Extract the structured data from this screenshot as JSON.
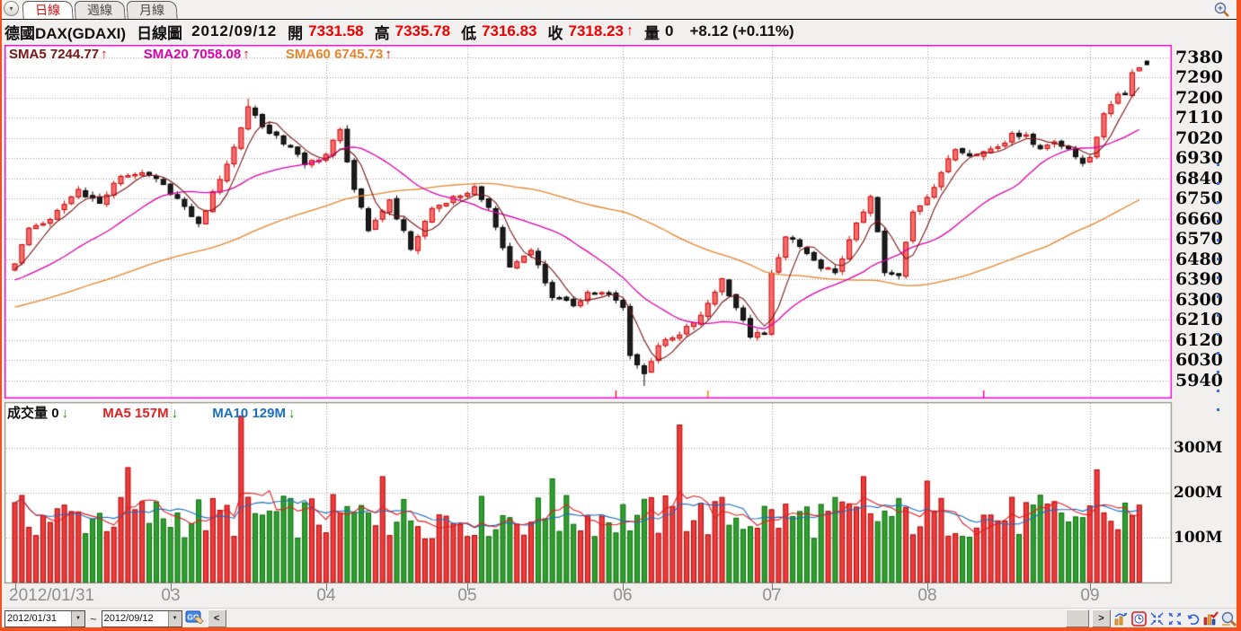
{
  "tabs": {
    "dropdown_glyph": "▾",
    "items": [
      {
        "label": "日線",
        "active": true
      },
      {
        "label": "週線",
        "active": false
      },
      {
        "label": "月線",
        "active": false
      }
    ]
  },
  "header": {
    "instrument": "德國DAX(GDAXI)",
    "chart_type": "日線圖",
    "date": "2012/09/12",
    "open_label": "開",
    "open": "7331.58",
    "high_label": "高",
    "high": "7335.78",
    "low_label": "低",
    "low": "7316.83",
    "close_label": "收",
    "close": "7318.23",
    "close_arrow": "↑",
    "volume_label": "量",
    "volume": "0",
    "change": "+8.12 (+0.11%)"
  },
  "sma_legend": {
    "items": [
      {
        "label": "SMA5",
        "value": "7244.77",
        "arrow": "↑"
      },
      {
        "label": "SMA20",
        "value": "7058.08",
        "arrow": "↑"
      },
      {
        "label": "SMA60",
        "value": "6745.73",
        "arrow": "↑"
      }
    ]
  },
  "volume_legend": {
    "label": "成交量",
    "value": "0",
    "arrow": "↓",
    "items": [
      {
        "label": "MA5",
        "value": "157M",
        "arrow": "↓"
      },
      {
        "label": "MA10",
        "value": "129M",
        "arrow": "↓"
      }
    ]
  },
  "bottom": {
    "from_date": "2012/01/31",
    "separator": "~",
    "to_date": "2012/09/12",
    "go_label": "GO",
    "scroll_left": "<",
    "scroll_right": ">",
    "dropdown_glyph": "▼"
  },
  "chart_data": {
    "type": "candlestick",
    "title": "德國DAX(GDAXI) 日線圖",
    "period": "daily",
    "date_range": [
      "2012/01/31",
      "2012/09/12"
    ],
    "last_bar": {
      "date": "2012/09/12",
      "open": 7331.58,
      "high": 7335.78,
      "low": 7316.83,
      "close": 7318.23,
      "change": 8.12,
      "change_pct": 0.11,
      "volume": 0
    },
    "price_axis": {
      "ticks": [
        7380,
        7290,
        7200,
        7110,
        7020,
        6930,
        6840,
        6750,
        6660,
        6570,
        6480,
        6390,
        6300,
        6210,
        6120,
        6030,
        5940
      ],
      "step": 90
    },
    "volume_axis": {
      "ticks": [
        {
          "label": "300M",
          "value": 300
        },
        {
          "label": "200M",
          "value": 200
        },
        {
          "label": "100M",
          "value": 100
        }
      ]
    },
    "x_axis": {
      "labels": [
        "2012/01/31",
        "03",
        "04",
        "05",
        "06",
        "07",
        "08",
        "09"
      ],
      "day_index": [
        0,
        22,
        44,
        64,
        86,
        107,
        129,
        152
      ]
    },
    "num_days": 160,
    "overlays": [
      {
        "name": "SMA5",
        "last_value": 7244.77,
        "trend": "up",
        "color": "#7a1515"
      },
      {
        "name": "SMA20",
        "last_value": 7058.08,
        "trend": "up",
        "color": "#dd00aa"
      },
      {
        "name": "SMA60",
        "last_value": 6745.73,
        "trend": "up",
        "color": "#e8842a"
      }
    ],
    "volume_overlays": [
      {
        "name": "MA5",
        "last_value_m": 157,
        "trend": "down",
        "color": "#e02020"
      },
      {
        "name": "MA10",
        "last_value_m": 129,
        "trend": "down",
        "color": "#1a6fc4"
      }
    ],
    "close_anchors": [
      [
        0,
        6458
      ],
      [
        2,
        6617
      ],
      [
        5,
        6656
      ],
      [
        9,
        6790
      ],
      [
        12,
        6728
      ],
      [
        15,
        6848
      ],
      [
        18,
        6864
      ],
      [
        21,
        6812
      ],
      [
        24,
        6714
      ],
      [
        26,
        6638
      ],
      [
        29,
        6834
      ],
      [
        31,
        6978
      ],
      [
        33,
        7158
      ],
      [
        36,
        7040
      ],
      [
        39,
        6978
      ],
      [
        41,
        6900
      ],
      [
        44,
        6946
      ],
      [
        46,
        7057
      ],
      [
        48,
        6790
      ],
      [
        50,
        6606
      ],
      [
        53,
        6743
      ],
      [
        56,
        6523
      ],
      [
        59,
        6705
      ],
      [
        63,
        6761
      ],
      [
        65,
        6802
      ],
      [
        67,
        6710
      ],
      [
        70,
        6444
      ],
      [
        73,
        6518
      ],
      [
        76,
        6308
      ],
      [
        79,
        6271
      ],
      [
        81,
        6331
      ],
      [
        84,
        6323
      ],
      [
        86,
        6264
      ],
      [
        87,
        6050
      ],
      [
        89,
        5969
      ],
      [
        91,
        6093
      ],
      [
        94,
        6141
      ],
      [
        97,
        6229
      ],
      [
        100,
        6392
      ],
      [
        102,
        6263
      ],
      [
        104,
        6132
      ],
      [
        106,
        6150
      ],
      [
        107,
        6416
      ],
      [
        109,
        6578
      ],
      [
        111,
        6536
      ],
      [
        114,
        6438
      ],
      [
        116,
        6419
      ],
      [
        118,
        6565
      ],
      [
        121,
        6758
      ],
      [
        123,
        6419
      ],
      [
        125,
        6406
      ],
      [
        127,
        6689
      ],
      [
        129,
        6754
      ],
      [
        131,
        6865
      ],
      [
        133,
        6967
      ],
      [
        136,
        6944
      ],
      [
        140,
        6996
      ],
      [
        141,
        7040
      ],
      [
        143,
        7033
      ],
      [
        145,
        6971
      ],
      [
        147,
        7002
      ],
      [
        149,
        6971
      ],
      [
        151,
        6906
      ],
      [
        152,
        6932
      ],
      [
        154,
        7127
      ],
      [
        155,
        7167
      ],
      [
        156,
        7214
      ],
      [
        157,
        7213
      ],
      [
        158,
        7310
      ],
      [
        159,
        7318.23
      ]
    ],
    "pre_anchors": [
      [
        -60,
        6100
      ],
      [
        -30,
        6250
      ],
      [
        -1,
        6440
      ]
    ],
    "extremes": {
      "period_high": 7335.78,
      "period_low": 5914,
      "march_peak_high": 7194,
      "march_peak_day": 33,
      "june_low_day": 89
    },
    "volume_profile": {
      "base_m": 95,
      "range_m": 100,
      "spikes": [
        [
          16,
          255
        ],
        [
          32,
          370
        ],
        [
          52,
          235
        ],
        [
          76,
          230
        ],
        [
          94,
          350
        ],
        [
          120,
          235
        ],
        [
          129,
          225
        ],
        [
          153,
          250
        ]
      ]
    },
    "event_ticks": [
      {
        "day": 85,
        "color": "#ee2222"
      },
      {
        "day": 98,
        "color": "#f08a00"
      },
      {
        "day": 137,
        "color": "#ee00aa"
      }
    ],
    "colors": {
      "up_fill": "#f96c6c",
      "up_stroke": "#cc0000",
      "down_fill": "#1c1c1c",
      "down_stroke": "#000000",
      "vol_up_fill": "#ee3b3b",
      "vol_up_stroke": "#b00000",
      "vol_down_fill": "#2fa02f",
      "vol_down_stroke": "#0a6a0a",
      "grid": "#9a9a9a",
      "price_frame": "#f000d0",
      "volume_frame": "#8f8f7f",
      "panel_bg": "#ffffff"
    }
  }
}
